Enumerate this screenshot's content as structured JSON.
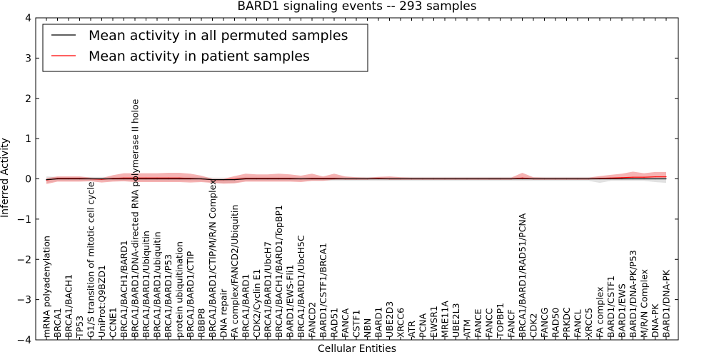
{
  "chart_data": {
    "type": "line",
    "title": "BARD1 signaling events -- 293 samples",
    "xlabel": "Cellular Entities",
    "ylabel": "Inferred Activity",
    "ylim": [
      -4,
      4
    ],
    "yticks": [
      "4",
      "3",
      "2",
      "1",
      "0",
      "−1",
      "−2",
      "−3",
      "−4"
    ],
    "grid": false,
    "legend_position": "top-left",
    "categories": [
      "mRNA polyadenylation",
      "BRCA1",
      "BRCA1/BACH1",
      "TP53",
      "G1/S transition of mitotic cell cycle",
      "UniProt:Q9BZD1",
      "CCNE1",
      "BRCA1/BACH1/BARD1",
      "BRCA1/BARD1/DNA-directed RNA polymerase II holoe",
      "BRCA1/BARD1/Ubiquitin",
      "BRCA1/BARD1/ubiquitin",
      "BRCA1/BARD1/P53",
      "protein ubiquitination",
      "BRCA1/BARD1/CTIP",
      "RBBP8",
      "BRCA1/BARD1/CTIP/M/R/N Complex",
      "DNA repair",
      "FA complex/FANCD2/Ubiquitin",
      "BRCA1/BARD1",
      "CDK2/Cyclin E1",
      "BRCA1/BARD1/UbcH7",
      "BRCA1/BACH1/BARD1/TopBP1",
      "BARD1/EWS-Fli1",
      "BRCA1/BARD1/UbcH5C",
      "FANCD2",
      "BARD1/CSTF1/BRCA1",
      "RAD51",
      "FANCA",
      "CSTF1",
      "NBN",
      "BARD1",
      "UBE2D3",
      "XRCC6",
      "ATR",
      "PCNA",
      "EWSR1",
      "MRE11A",
      "UBE2L3",
      "ATM",
      "FANCE",
      "FANCC",
      "TOPBP1",
      "FANCF",
      "BRCA1/BARD1/RAD51/PCNA",
      "CDK2",
      "FANCG",
      "RAD50",
      "PRKDC",
      "FANCL",
      "XRCC5",
      "FA complex",
      "BARD1/CSTF1",
      "BARD1/EWS",
      "BARD1/DNA-PK/P53",
      "M/R/N Complex",
      "DNA-PK",
      "BARD1/DNA-PK"
    ],
    "series": [
      {
        "name": "Mean activity in all permuted samples",
        "color": "#000000",
        "band_color": "#aaaaaa",
        "values": [
          -0.02,
          0.0,
          0.0,
          0.0,
          0.0,
          0.0,
          0.0,
          0.0,
          0.0,
          0.0,
          0.0,
          0.0,
          0.0,
          0.0,
          0.0,
          -0.02,
          -0.02,
          -0.02,
          0.0,
          0.0,
          0.0,
          0.0,
          0.0,
          0.0,
          0.0,
          0.0,
          0.0,
          0.0,
          0.0,
          0.0,
          0.0,
          0.0,
          0.0,
          0.0,
          0.0,
          0.0,
          0.0,
          0.0,
          0.0,
          0.0,
          0.0,
          0.0,
          0.0,
          0.0,
          0.0,
          0.0,
          0.0,
          0.0,
          0.0,
          0.0,
          0.0,
          0.0,
          0.0,
          0.0,
          0.0,
          0.0,
          0.0
        ],
        "band_lower": [
          -0.08,
          -0.05,
          -0.05,
          -0.05,
          -0.05,
          -0.05,
          -0.05,
          -0.05,
          -0.05,
          -0.05,
          -0.05,
          -0.05,
          -0.05,
          -0.05,
          -0.05,
          -0.08,
          -0.08,
          -0.08,
          -0.05,
          -0.05,
          -0.05,
          -0.05,
          -0.05,
          -0.05,
          -0.05,
          -0.05,
          -0.05,
          -0.05,
          -0.05,
          -0.05,
          -0.05,
          -0.05,
          -0.05,
          -0.05,
          -0.05,
          -0.05,
          -0.05,
          -0.05,
          -0.05,
          -0.05,
          -0.05,
          -0.05,
          -0.05,
          -0.05,
          -0.05,
          -0.05,
          -0.05,
          -0.05,
          -0.05,
          -0.05,
          -0.1,
          -0.05,
          -0.05,
          -0.05,
          -0.05,
          -0.08,
          -0.1
        ],
        "band_upper": [
          0.08,
          0.05,
          0.05,
          0.05,
          0.05,
          0.05,
          0.05,
          0.05,
          0.05,
          0.05,
          0.05,
          0.05,
          0.05,
          0.05,
          0.05,
          0.05,
          0.05,
          0.05,
          0.05,
          0.05,
          0.05,
          0.05,
          0.05,
          0.05,
          0.05,
          0.05,
          0.05,
          0.05,
          0.05,
          0.05,
          0.05,
          0.05,
          0.05,
          0.05,
          0.05,
          0.05,
          0.05,
          0.05,
          0.05,
          0.05,
          0.05,
          0.05,
          0.05,
          0.05,
          0.05,
          0.05,
          0.05,
          0.05,
          0.05,
          0.05,
          0.05,
          0.05,
          0.05,
          0.05,
          0.05,
          0.05,
          0.05
        ]
      },
      {
        "name": "Mean activity in patient samples",
        "color": "#ff0000",
        "band_color": "#f08080",
        "values": [
          -0.03,
          0.01,
          0.01,
          0.01,
          0.0,
          -0.01,
          0.01,
          0.02,
          0.02,
          0.02,
          0.02,
          0.02,
          0.02,
          0.01,
          0.0,
          -0.02,
          -0.02,
          -0.01,
          0.01,
          0.01,
          0.01,
          0.01,
          0.01,
          0.0,
          0.01,
          0.01,
          0.01,
          0.0,
          0.0,
          0.0,
          0.01,
          0.0,
          0.0,
          0.0,
          0.0,
          0.0,
          0.0,
          0.0,
          0.0,
          0.0,
          0.0,
          0.0,
          0.0,
          0.02,
          0.0,
          0.0,
          0.0,
          0.0,
          0.0,
          0.0,
          0.01,
          0.02,
          0.03,
          0.04,
          0.04,
          0.05,
          0.05
        ],
        "band_lower": [
          -0.1,
          -0.08,
          -0.08,
          -0.08,
          -0.06,
          -0.08,
          -0.08,
          -0.08,
          -0.1,
          -0.1,
          -0.1,
          -0.1,
          -0.1,
          -0.1,
          -0.08,
          -0.08,
          -0.1,
          -0.1,
          -0.08,
          -0.08,
          -0.08,
          -0.08,
          -0.08,
          -0.08,
          -0.06,
          -0.06,
          -0.03,
          -0.02,
          -0.02,
          -0.02,
          -0.02,
          -0.02,
          -0.02,
          -0.02,
          -0.02,
          -0.02,
          -0.02,
          -0.02,
          -0.02,
          -0.02,
          -0.02,
          -0.02,
          -0.02,
          -0.02,
          -0.02,
          -0.02,
          -0.02,
          -0.02,
          -0.02,
          -0.02,
          -0.02,
          -0.02,
          -0.02,
          -0.02,
          -0.02,
          -0.02,
          -0.02
        ],
        "band_upper": [
          0.05,
          0.05,
          0.05,
          0.05,
          0.03,
          0.03,
          0.08,
          0.12,
          0.12,
          0.12,
          0.12,
          0.13,
          0.13,
          0.12,
          0.08,
          0.02,
          0.02,
          0.08,
          0.12,
          0.1,
          0.1,
          0.12,
          0.1,
          0.08,
          0.12,
          0.05,
          0.12,
          0.06,
          0.04,
          0.03,
          0.04,
          0.06,
          0.04,
          0.03,
          0.03,
          0.03,
          0.03,
          0.03,
          0.03,
          0.03,
          0.03,
          0.03,
          0.03,
          0.13,
          0.04,
          0.03,
          0.03,
          0.03,
          0.03,
          0.03,
          0.06,
          0.08,
          0.1,
          0.14,
          0.1,
          0.12,
          0.12
        ]
      }
    ]
  }
}
